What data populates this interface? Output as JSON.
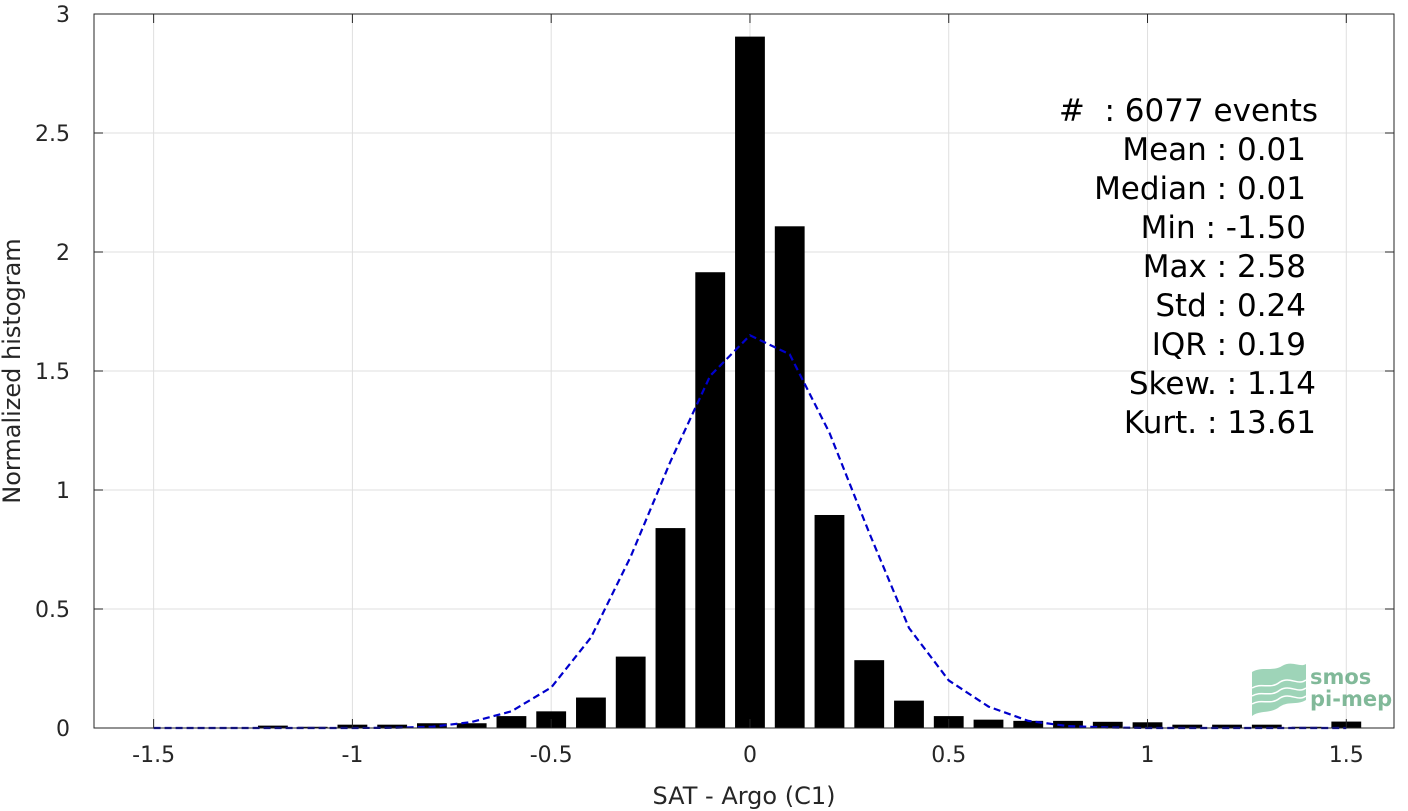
{
  "chart_data": {
    "type": "bar",
    "xlabel": "SAT - Argo (C1)",
    "ylabel": "Normalized histogram",
    "xlim": [
      -1.65,
      1.62
    ],
    "ylim": [
      0,
      3
    ],
    "xticks": [
      -1.5,
      -1,
      -0.5,
      0,
      0.5,
      1,
      1.5
    ],
    "xtick_labels": [
      "-1.5",
      "-1",
      "-0.5",
      "0",
      "0.5",
      "1",
      "1.5"
    ],
    "yticks": [
      0,
      0.5,
      1,
      1.5,
      2,
      2.5,
      3
    ],
    "ytick_labels": [
      "0",
      "0.5",
      "1",
      "1.5",
      "2",
      "2.5",
      "3"
    ],
    "grid": true,
    "bar_width": 0.075,
    "bar_color": "#000000",
    "series": [
      {
        "x": [
          -1.5,
          -1.4,
          -1.3,
          -1.2,
          -1.1,
          -1.0,
          -0.9,
          -0.8,
          -0.7,
          -0.6,
          -0.5,
          -0.4,
          -0.3,
          -0.2,
          -0.1,
          0.0,
          0.1,
          0.2,
          0.3,
          0.4,
          0.5,
          0.6,
          0.7,
          0.8,
          0.9,
          1.0,
          1.1,
          1.2,
          1.3,
          1.4,
          1.5
        ],
        "values": [
          0.002,
          0.0,
          0.0,
          0.01,
          0.005,
          0.014,
          0.014,
          0.02,
          0.02,
          0.05,
          0.07,
          0.128,
          0.3,
          0.84,
          1.915,
          2.905,
          2.108,
          0.895,
          0.285,
          0.115,
          0.05,
          0.035,
          0.03,
          0.03,
          0.026,
          0.024,
          0.014,
          0.014,
          0.014,
          0.005,
          0.027
        ]
      },
      {
        "style": "dashed",
        "color": "#0000cc",
        "x": [
          -1.5,
          -1.4,
          -1.3,
          -1.2,
          -1.1,
          -1.0,
          -0.9,
          -0.8,
          -0.7,
          -0.6,
          -0.5,
          -0.4,
          -0.3,
          -0.2,
          -0.1,
          0.0,
          0.1,
          0.2,
          0.3,
          0.4,
          0.5,
          0.6,
          0.7,
          0.8,
          0.9,
          1.0,
          1.1,
          1.2,
          1.3,
          1.4,
          1.5
        ],
        "values": [
          0.0,
          0.0,
          0.0,
          0.0,
          0.0,
          0.0,
          0.001,
          0.005,
          0.025,
          0.07,
          0.17,
          0.38,
          0.72,
          1.12,
          1.48,
          1.65,
          1.57,
          1.24,
          0.82,
          0.42,
          0.2,
          0.09,
          0.03,
          0.008,
          0.002,
          0.0,
          0.0,
          0.0,
          0.0,
          0.0,
          0.0
        ]
      }
    ],
    "annotations": {
      "events": "#  : 6077 events",
      "mean": "Mean : 0.01",
      "median": "Median : 0.01",
      "min": "Min : -1.50",
      "max": "Max : 2.58",
      "std": "Std : 0.24",
      "iqr": "IQR : 0.19",
      "skew": "Skew. : 1.14",
      "kurt": "Kurt. : 13.61"
    }
  },
  "logo": {
    "line1": "smos",
    "line2": "pi-mep",
    "color": "#2e8b57"
  }
}
